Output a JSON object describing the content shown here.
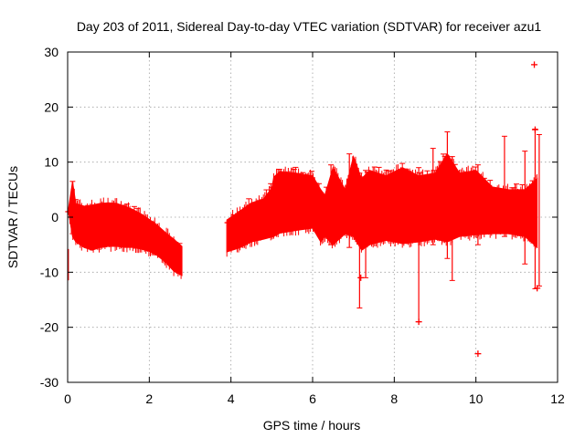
{
  "chart_data": {
    "type": "scatter",
    "title": "Day 203 of 2011, Sidereal Day-to-day VTEC variation (SDTVAR) for receiver azu1",
    "xlabel": "GPS time / hours",
    "ylabel": "SDTVAR / TECUs",
    "xlim": [
      0,
      12
    ],
    "ylim": [
      -30,
      30
    ],
    "xticks": [
      "0",
      "2",
      "4",
      "6",
      "8",
      "10",
      "12"
    ],
    "yticks": [
      "-30",
      "-20",
      "-10",
      "0",
      "10",
      "20",
      "30"
    ],
    "grid": true,
    "color": "#ff0000",
    "envelope": [
      [
        0.02,
        1.5,
        1.0
      ],
      [
        0.12,
        6.5,
        -3.5
      ],
      [
        0.2,
        2.5,
        -4.5
      ],
      [
        0.4,
        2.0,
        -5.5
      ],
      [
        0.6,
        2.2,
        -6.0
      ],
      [
        0.8,
        2.5,
        -5.5
      ],
      [
        1.0,
        2.6,
        -5.3
      ],
      [
        1.2,
        2.5,
        -5.3
      ],
      [
        1.4,
        2.0,
        -5.5
      ],
      [
        1.6,
        1.4,
        -5.5
      ],
      [
        1.8,
        0.6,
        -5.8
      ],
      [
        2.0,
        -0.4,
        -6.2
      ],
      [
        2.2,
        -1.5,
        -7.0
      ],
      [
        2.4,
        -2.8,
        -8.2
      ],
      [
        2.6,
        -4.0,
        -9.8
      ],
      [
        2.8,
        -5.3,
        -10.6
      ],
      null,
      [
        3.9,
        -0.5,
        -6.3
      ],
      [
        4.2,
        1.0,
        -5.6
      ],
      [
        4.5,
        2.6,
        -4.5
      ],
      [
        4.8,
        3.3,
        -4.0
      ],
      [
        5.0,
        5.3,
        -3.6
      ],
      [
        5.05,
        7.3,
        -3.5
      ],
      [
        5.2,
        8.3,
        -2.9
      ],
      [
        5.6,
        8.0,
        -2.4
      ],
      [
        6.0,
        7.5,
        -2.0
      ],
      [
        6.2,
        5.0,
        -4.5
      ],
      [
        6.3,
        4.0,
        -3.5
      ],
      [
        6.5,
        9.0,
        -5.0
      ],
      [
        6.8,
        5.0,
        -3.0
      ],
      [
        7.0,
        11.0,
        -3.5
      ],
      [
        7.2,
        7.0,
        -6.0
      ],
      [
        7.4,
        8.5,
        -5.0
      ],
      [
        7.8,
        7.5,
        -4.2
      ],
      [
        8.2,
        9.0,
        -4.8
      ],
      [
        8.6,
        7.5,
        -4.5
      ],
      [
        9.0,
        8.0,
        -4.0
      ],
      [
        9.3,
        11.5,
        -4.5
      ],
      [
        9.6,
        8.0,
        -3.5
      ],
      [
        10.0,
        8.5,
        -3.2
      ],
      [
        10.4,
        5.5,
        -3.0
      ],
      [
        10.8,
        5.0,
        -3.0
      ],
      [
        11.2,
        5.0,
        -3.5
      ],
      [
        11.5,
        7.0,
        -5.5
      ]
    ],
    "spikes": [
      [
        0.12,
        6.5,
        -3.0
      ],
      [
        6.45,
        9.5,
        -5.0
      ],
      [
        6.9,
        11.5,
        -5.5
      ],
      [
        7.15,
        8.0,
        -16.5
      ],
      [
        7.3,
        8.5,
        -11.0
      ],
      [
        8.6,
        9.0,
        -19.0
      ],
      [
        8.95,
        12.5,
        -5.0
      ],
      [
        9.3,
        15.5,
        -7.5
      ],
      [
        9.42,
        11.0,
        -11.5
      ],
      [
        10.05,
        9.5,
        -5.0
      ],
      [
        10.7,
        14.7,
        -3.5
      ],
      [
        11.2,
        12.0,
        -8.5
      ],
      [
        11.45,
        16.0,
        -13.0
      ],
      [
        11.55,
        15.0,
        -12.5
      ]
    ],
    "outliers": [
      [
        10.05,
        -24.8
      ],
      [
        11.43,
        27.7
      ],
      [
        0.02,
        1.0
      ],
      [
        3.92,
        -1.0
      ],
      [
        8.6,
        -19.0
      ],
      [
        7.18,
        -11.0
      ],
      [
        11.45,
        15.9
      ],
      [
        11.5,
        -12.9
      ]
    ]
  }
}
